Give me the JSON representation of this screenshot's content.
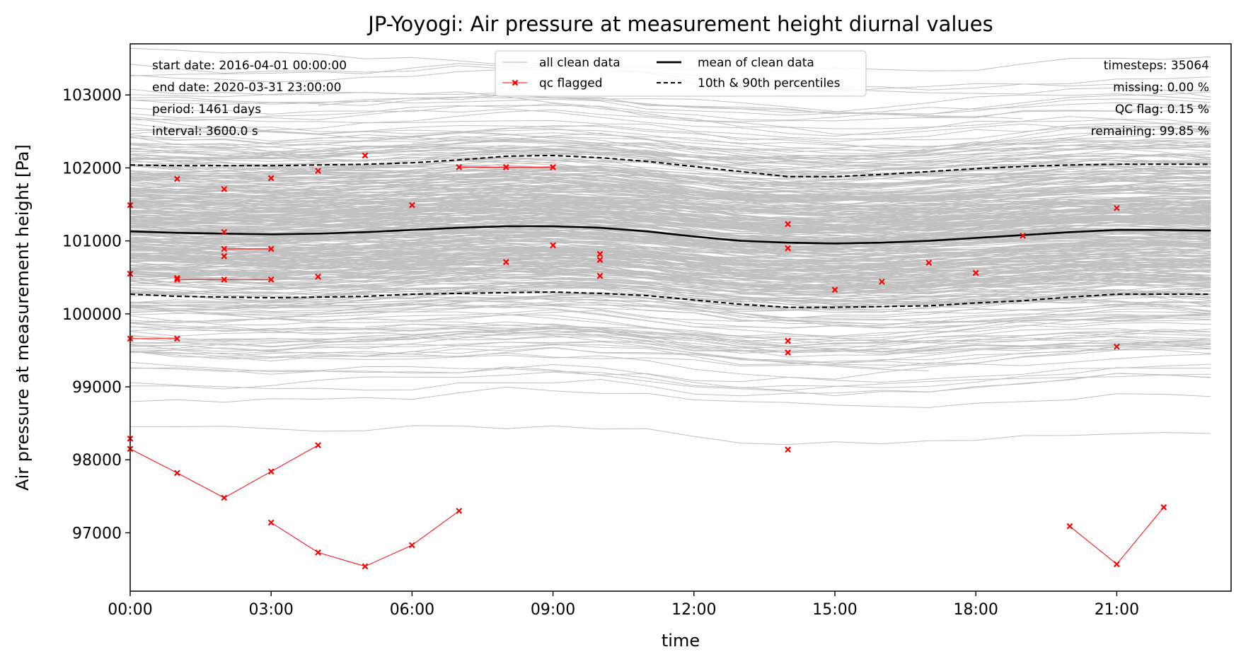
{
  "chart_data": {
    "type": "line",
    "title": "JP-Yoyogi: Air pressure at measurement height diurnal values",
    "xlabel": "time",
    "ylabel": "Air pressure at measurement height [Pa]",
    "xlim": [
      0,
      23
    ],
    "ylim": [
      96200,
      103700
    ],
    "x_tick_values": [
      0,
      3,
      6,
      9,
      12,
      15,
      18,
      21
    ],
    "x_tick_labels": [
      "00:00",
      "03:00",
      "06:00",
      "09:00",
      "12:00",
      "15:00",
      "18:00",
      "21:00"
    ],
    "y_tick_values": [
      97000,
      98000,
      99000,
      100000,
      101000,
      102000,
      103000
    ],
    "y_tick_labels": [
      "97000",
      "98000",
      "99000",
      "100000",
      "101000",
      "102000",
      "103000"
    ],
    "x": [
      0,
      1,
      2,
      3,
      4,
      5,
      6,
      7,
      8,
      9,
      10,
      11,
      12,
      13,
      14,
      15,
      16,
      17,
      18,
      19,
      20,
      21,
      22,
      23
    ],
    "series": [
      {
        "name": "mean of clean data",
        "style": "solid",
        "color": "#000000",
        "values": [
          101130,
          101110,
          101100,
          101090,
          101100,
          101120,
          101150,
          101180,
          101200,
          101200,
          101180,
          101130,
          101060,
          101000,
          100975,
          100965,
          100975,
          101000,
          101040,
          101080,
          101120,
          101150,
          101150,
          101140
        ]
      },
      {
        "name": "10th & 90th percentiles",
        "style": "dashed",
        "color": "#000000",
        "values": [
          102040,
          102030,
          102030,
          102030,
          102040,
          102050,
          102070,
          102110,
          102160,
          102170,
          102140,
          102090,
          102020,
          101950,
          101880,
          101880,
          101910,
          101950,
          101990,
          102020,
          102040,
          102050,
          102050,
          102050
        ]
      },
      {
        "name": "10th & 90th percentiles (10th)",
        "style": "dashed",
        "color": "#000000",
        "values": [
          100270,
          100240,
          100230,
          100220,
          100230,
          100240,
          100270,
          100280,
          100290,
          100300,
          100280,
          100250,
          100190,
          100130,
          100090,
          100090,
          100100,
          100110,
          100150,
          100180,
          100230,
          100270,
          100270,
          100270
        ]
      }
    ],
    "clean_band": {
      "name": "all clean data",
      "color": "#c0c0c0",
      "low": 99700,
      "high": 102600
    },
    "qc_flagged": {
      "name": "qc flagged",
      "color": "#ff0000",
      "segments": [
        [
          [
            0,
            98150
          ],
          [
            1,
            97820
          ],
          [
            2,
            97480
          ],
          [
            3,
            97840
          ],
          [
            4,
            98200
          ]
        ],
        [
          [
            3,
            97140
          ],
          [
            4,
            96730
          ],
          [
            5,
            96540
          ],
          [
            6,
            96830
          ],
          [
            7,
            97300
          ]
        ],
        [
          [
            20,
            97090
          ],
          [
            21,
            96570
          ],
          [
            22,
            97350
          ]
        ],
        [
          [
            7,
            102010
          ],
          [
            8,
            102010
          ],
          [
            9,
            102010
          ]
        ],
        [
          [
            1,
            100470
          ],
          [
            2,
            100470
          ],
          [
            3,
            100470
          ]
        ],
        [
          [
            2,
            100890
          ],
          [
            3,
            100890
          ]
        ],
        [
          [
            0,
            99660
          ],
          [
            1,
            99660
          ]
        ]
      ],
      "points": [
        [
          0,
          101490
        ],
        [
          0,
          100550
        ],
        [
          0,
          98290
        ],
        [
          1,
          101850
        ],
        [
          1,
          100490
        ],
        [
          2,
          101710
        ],
        [
          2,
          101120
        ],
        [
          2,
          100790
        ],
        [
          3,
          101860
        ],
        [
          4,
          101960
        ],
        [
          4,
          100510
        ],
        [
          5,
          102170
        ],
        [
          6,
          101490
        ],
        [
          8,
          100710
        ],
        [
          9,
          100940
        ],
        [
          10,
          100820
        ],
        [
          10,
          100740
        ],
        [
          10,
          100520
        ],
        [
          14,
          101230
        ],
        [
          14,
          100900
        ],
        [
          14,
          99630
        ],
        [
          14,
          99470
        ],
        [
          14,
          98140
        ],
        [
          15,
          100330
        ],
        [
          16,
          100440
        ],
        [
          17,
          100700
        ],
        [
          18,
          100560
        ],
        [
          19,
          101070
        ],
        [
          21,
          101450
        ],
        [
          21,
          99550
        ]
      ]
    },
    "legend": {
      "position": "upper-center",
      "entries": [
        "all clean data",
        "qc flagged",
        "mean of clean data",
        "10th & 90th percentiles"
      ]
    },
    "annotations_left": [
      "start date: 2016-04-01 00:00:00",
      "end date: 2020-03-31 23:00:00",
      "period: 1461 days",
      "interval: 3600.0 s"
    ],
    "annotations_right": [
      "timesteps: 35064",
      "missing: 0.00 %",
      "QC flag: 0.15 %",
      "remaining: 99.85 %"
    ],
    "grid": false
  }
}
